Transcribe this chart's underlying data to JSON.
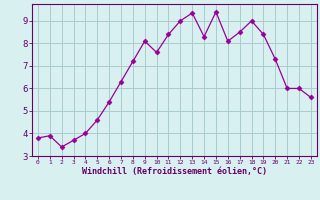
{
  "x": [
    0,
    1,
    2,
    3,
    4,
    5,
    6,
    7,
    8,
    9,
    10,
    11,
    12,
    13,
    14,
    15,
    16,
    17,
    18,
    19,
    20,
    21,
    22,
    23
  ],
  "y": [
    3.8,
    3.9,
    3.4,
    3.7,
    4.0,
    4.6,
    5.4,
    6.3,
    7.2,
    8.1,
    7.6,
    8.4,
    9.0,
    9.35,
    8.3,
    9.4,
    8.1,
    8.5,
    9.0,
    8.4,
    7.3,
    6.0,
    6.0,
    5.6
  ],
  "xlim": [
    -0.5,
    23.5
  ],
  "ylim": [
    3.0,
    9.75
  ],
  "yticks": [
    3,
    4,
    5,
    6,
    7,
    8,
    9
  ],
  "xticks": [
    0,
    1,
    2,
    3,
    4,
    5,
    6,
    7,
    8,
    9,
    10,
    11,
    12,
    13,
    14,
    15,
    16,
    17,
    18,
    19,
    20,
    21,
    22,
    23
  ],
  "xlabel": "Windchill (Refroidissement éolien,°C)",
  "line_color": "#990099",
  "marker": "D",
  "marker_size": 2.5,
  "bg_color": "#d8f0f0",
  "grid_color": "#aacccc",
  "xlabel_color": "#660066",
  "tick_color": "#660066",
  "spine_color": "#660066"
}
